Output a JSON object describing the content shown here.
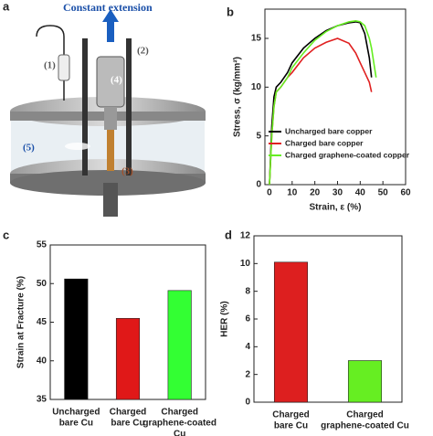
{
  "diagram": {
    "panel_label": "a",
    "title": "Constant extension",
    "labels": [
      "(1)",
      "(2)",
      "(3)",
      "(4)",
      "(5)"
    ]
  },
  "chart_data": [
    {
      "type": "line",
      "panel_label": "b",
      "x_label": "Strain, ε (%)",
      "y_label": "Stress, σ (kg/mm²)",
      "x": [
        0,
        1,
        2,
        3,
        5,
        8,
        10,
        15,
        20,
        25,
        30,
        35,
        38,
        40,
        42,
        44,
        45,
        46,
        47
      ],
      "series": [
        {
          "name": "Uncharged bare copper",
          "color": "#000000",
          "values": [
            0,
            6,
            9,
            10,
            10.5,
            11.5,
            12.5,
            14,
            15,
            15.8,
            16.3,
            16.6,
            16.7,
            16.6,
            15.5,
            13,
            11,
            null,
            null
          ]
        },
        {
          "name": "Charged bare copper",
          "color": "#e02020",
          "values": [
            0,
            5,
            8,
            9.5,
            10,
            11,
            11.5,
            13,
            14,
            14.6,
            15,
            14.5,
            13.5,
            12.5,
            11.5,
            10.5,
            9.5,
            null,
            null
          ]
        },
        {
          "name": "Charged graphene-coated copper",
          "color": "#66ee22",
          "values": [
            0,
            5,
            8,
            9.5,
            10,
            11,
            12,
            13.5,
            14.8,
            15.7,
            16.3,
            16.7,
            16.8,
            16.7,
            16.3,
            15,
            14,
            12.5,
            11
          ]
        }
      ],
      "xlim": [
        -2,
        60
      ],
      "xticks": [
        0,
        10,
        20,
        30,
        40,
        50,
        60
      ],
      "ylim": [
        0,
        18
      ],
      "yticks": [
        0,
        5,
        10,
        15
      ],
      "legend": "lower right"
    },
    {
      "type": "bar",
      "panel_label": "c",
      "y_label": "Strain at Fracture (%)",
      "categories": [
        [
          "Uncharged",
          "bare Cu"
        ],
        [
          "Charged",
          "bare Cu"
        ],
        [
          "Charged",
          "graphene-coated",
          "Cu"
        ]
      ],
      "values": [
        50.6,
        45.5,
        49.1
      ],
      "colors": [
        "#000000",
        "#e01818",
        "#33ff33"
      ],
      "ylim": [
        35,
        55
      ],
      "yticks": [
        35,
        40,
        45,
        50,
        55
      ]
    },
    {
      "type": "bar",
      "panel_label": "d",
      "y_label": "HER (%)",
      "categories": [
        [
          "Charged",
          "bare Cu"
        ],
        [
          "Charged",
          "graphene-coated Cu"
        ]
      ],
      "values": [
        10.1,
        3.0
      ],
      "colors": [
        "#dd1f1f",
        "#66ee22"
      ],
      "ylim": [
        0,
        12
      ],
      "yticks": [
        0,
        2,
        4,
        6,
        8,
        10,
        12
      ]
    }
  ]
}
